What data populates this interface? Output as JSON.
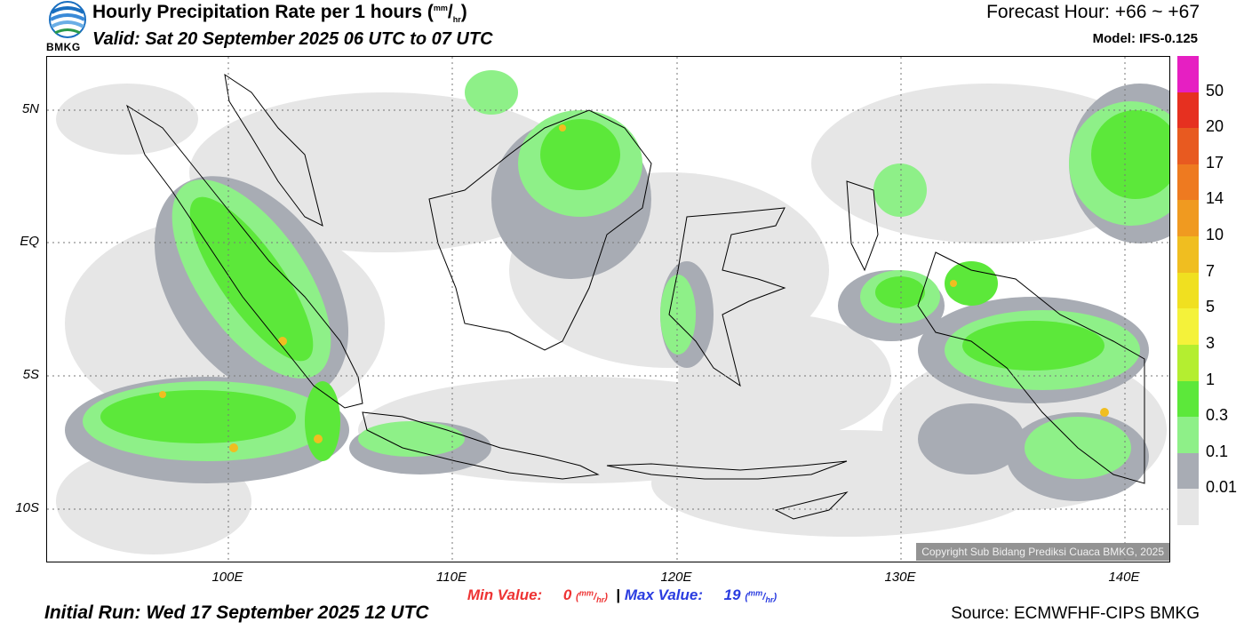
{
  "header": {
    "logo_text": "BMKG",
    "title_main": "Hourly Precipitation Rate per 1 hours (",
    "title_unit_num": "mm",
    "title_unit_den": "hr",
    "title_close": ")",
    "valid": "Valid: Sat 20 September 2025 06 UTC to 07 UTC",
    "forecast_hour": "Forecast Hour: +66 ~ +67",
    "model": "Model: IFS-0.125"
  },
  "map": {
    "lat_labels": [
      "5N",
      "EQ",
      "5S",
      "10S"
    ],
    "lon_labels": [
      "100E",
      "110E",
      "120E",
      "130E",
      "140E"
    ],
    "copyright": "Copyright Sub Bidang Prediksi Cuaca BMKG, 2025"
  },
  "legend": {
    "labels": [
      "50",
      "20",
      "17",
      "14",
      "10",
      "7",
      "5",
      "3",
      "1",
      "0.3",
      "0.1",
      "0.01"
    ],
    "colors": [
      "#e61fc2",
      "#e63020",
      "#e85a20",
      "#ee7a20",
      "#f09a20",
      "#f0be20",
      "#f0e020",
      "#f4f23a",
      "#b4ee30",
      "#5ce83a",
      "#8ef088",
      "#a8acb4",
      "#e6e6e6"
    ]
  },
  "stats": {
    "min_label": "Min Value:",
    "min_value": "0",
    "max_label": "Max Value:",
    "max_value": "19",
    "unit_num": "mm",
    "unit_den": "hr",
    "separator": "|"
  },
  "footer": {
    "initial_run": "Initial Run: Wed 17 September 2025 12 UTC",
    "source": "Source: ECMWFHF-CIPS BMKG"
  }
}
